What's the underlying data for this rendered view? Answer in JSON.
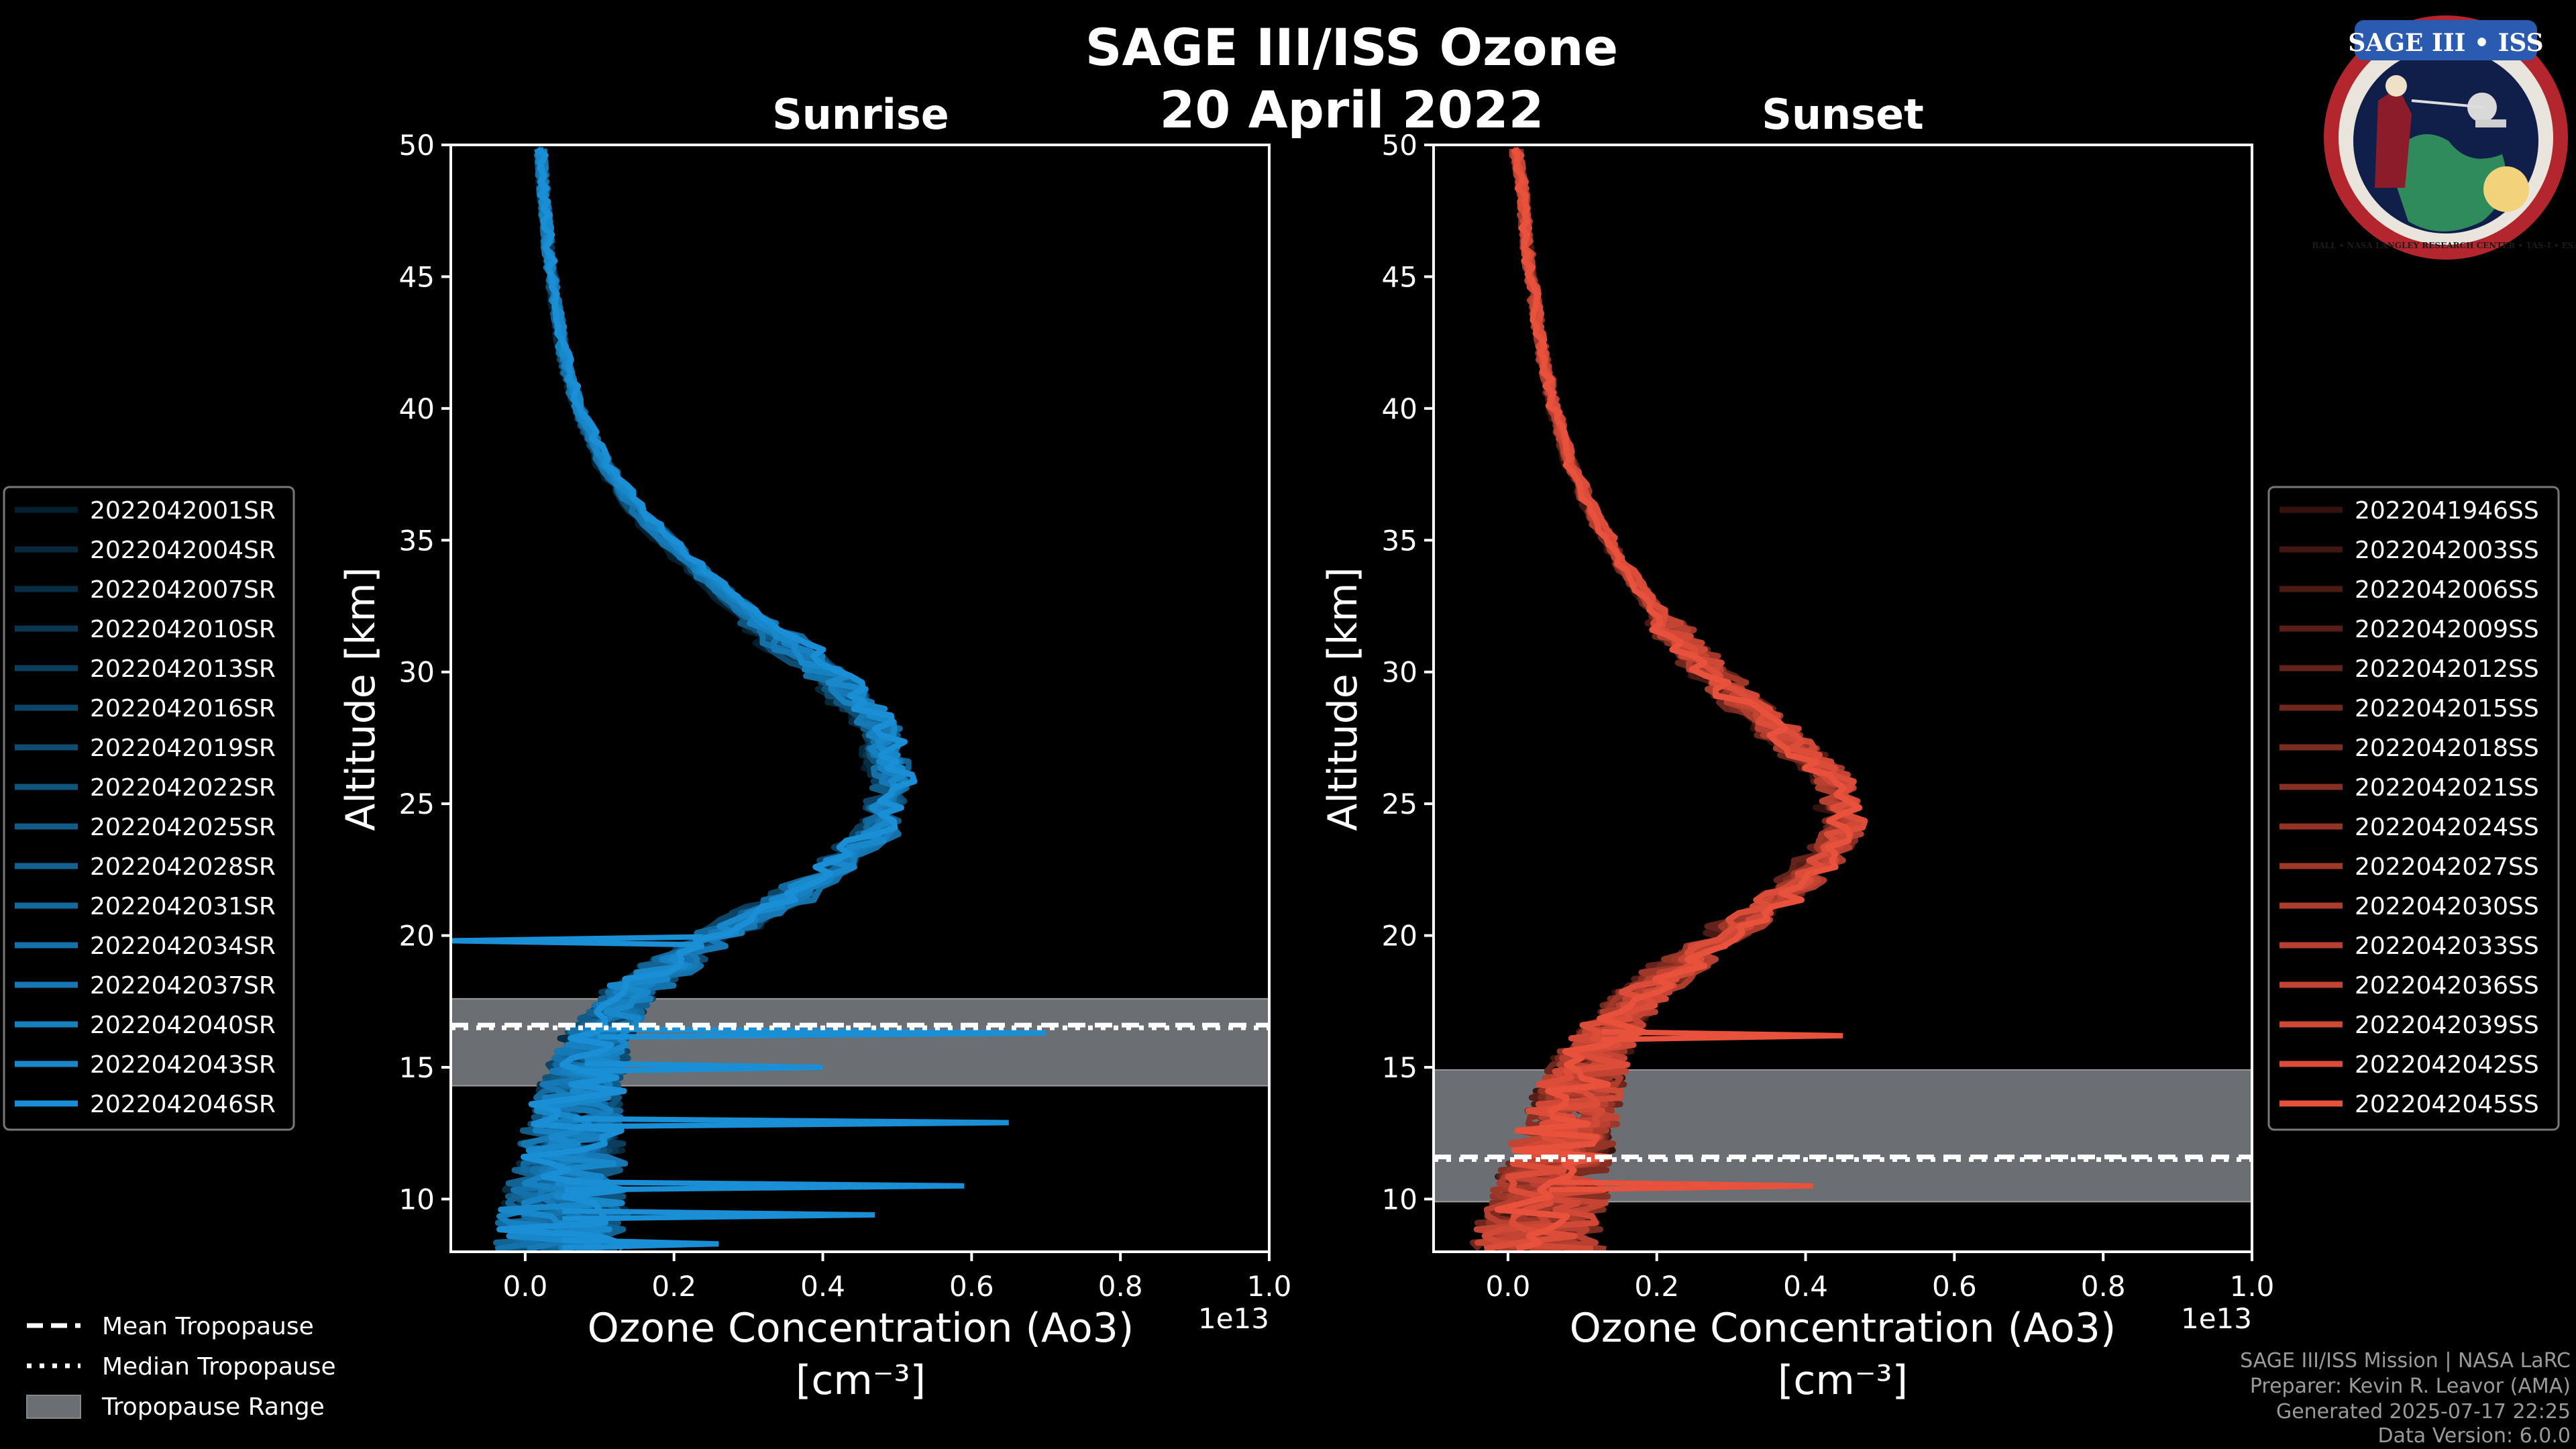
{
  "title": "SAGE III/ISS Ozone",
  "date": "20 April 2022",
  "colors": {
    "sunrise": "#1a8fd6",
    "sunset": "#e8513c",
    "tropopause_range": "#6b6e72"
  },
  "chart_data": [
    {
      "type": "line",
      "name": "sunrise",
      "subtitle": "Sunrise",
      "xlabel": "Ozone Concentration (Ao3)",
      "xunit": "[cm⁻³]",
      "ylabel": "Altitude [km]",
      "xlim": [
        -0.1,
        1.0
      ],
      "ylim": [
        8,
        50
      ],
      "x_offset_label": "1e13",
      "xticks": [
        0.0,
        0.2,
        0.4,
        0.6,
        0.8,
        1.0
      ],
      "xtick_labels": [
        "0.0",
        "0.2",
        "0.4",
        "0.6",
        "0.8",
        "1.0"
      ],
      "yticks": [
        10,
        15,
        20,
        25,
        30,
        35,
        40,
        45,
        50
      ],
      "ytick_labels": [
        "10",
        "15",
        "20",
        "25",
        "30",
        "35",
        "40",
        "45",
        "50"
      ],
      "tropopause": {
        "mean": 16.6,
        "median": 16.5,
        "range": [
          14.3,
          17.6
        ]
      },
      "base_profile": {
        "altitude": [
          8,
          10,
          12,
          14,
          16,
          18,
          20,
          22,
          24,
          26,
          28,
          30,
          32,
          34,
          36,
          38,
          40,
          42,
          44,
          46,
          48,
          50
        ],
        "ozone": [
          0.05,
          0.05,
          0.06,
          0.07,
          0.09,
          0.14,
          0.25,
          0.38,
          0.46,
          0.48,
          0.46,
          0.39,
          0.3,
          0.22,
          0.15,
          0.1,
          0.07,
          0.05,
          0.04,
          0.03,
          0.025,
          0.02
        ]
      },
      "spikes": [
        {
          "altitude": 19.8,
          "ozone": -0.1
        },
        {
          "altitude": 16.3,
          "ozone": 0.7
        },
        {
          "altitude": 15.0,
          "ozone": 0.4
        },
        {
          "altitude": 12.9,
          "ozone": 0.65
        },
        {
          "altitude": 10.5,
          "ozone": 0.59
        },
        {
          "altitude": 9.4,
          "ozone": 0.47
        },
        {
          "altitude": 8.3,
          "ozone": 0.26
        }
      ],
      "series": [
        {
          "name": "2022042001SR"
        },
        {
          "name": "2022042004SR"
        },
        {
          "name": "2022042007SR"
        },
        {
          "name": "2022042010SR"
        },
        {
          "name": "2022042013SR"
        },
        {
          "name": "2022042016SR"
        },
        {
          "name": "2022042019SR"
        },
        {
          "name": "2022042022SR"
        },
        {
          "name": "2022042025SR"
        },
        {
          "name": "2022042028SR"
        },
        {
          "name": "2022042031SR"
        },
        {
          "name": "2022042034SR"
        },
        {
          "name": "2022042037SR"
        },
        {
          "name": "2022042040SR"
        },
        {
          "name": "2022042043SR"
        },
        {
          "name": "2022042046SR"
        }
      ]
    },
    {
      "type": "line",
      "name": "sunset",
      "subtitle": "Sunset",
      "xlabel": "Ozone Concentration (Ao3)",
      "xunit": "[cm⁻³]",
      "ylabel": "Altitude [km]",
      "xlim": [
        -0.1,
        1.0
      ],
      "ylim": [
        8,
        50
      ],
      "x_offset_label": "1e13",
      "xticks": [
        0.0,
        0.2,
        0.4,
        0.6,
        0.8,
        1.0
      ],
      "xtick_labels": [
        "0.0",
        "0.2",
        "0.4",
        "0.6",
        "0.8",
        "1.0"
      ],
      "yticks": [
        10,
        15,
        20,
        25,
        30,
        35,
        40,
        45,
        50
      ],
      "ytick_labels": [
        "10",
        "15",
        "20",
        "25",
        "30",
        "35",
        "40",
        "45",
        "50"
      ],
      "tropopause": {
        "mean": 11.6,
        "median": 11.5,
        "range": [
          9.9,
          14.9
        ]
      },
      "base_profile": {
        "altitude": [
          8,
          10,
          12,
          14,
          16,
          18,
          20,
          22,
          24,
          26,
          28,
          30,
          32,
          34,
          36,
          38,
          40,
          42,
          44,
          46,
          48,
          50
        ],
        "ozone": [
          0.04,
          0.05,
          0.07,
          0.09,
          0.12,
          0.18,
          0.28,
          0.38,
          0.44,
          0.42,
          0.34,
          0.26,
          0.2,
          0.15,
          0.11,
          0.08,
          0.06,
          0.045,
          0.035,
          0.025,
          0.02,
          0.01
        ]
      },
      "spikes": [
        {
          "altitude": 10.5,
          "ozone": 0.41
        },
        {
          "altitude": 16.2,
          "ozone": 0.45
        }
      ],
      "series": [
        {
          "name": "2022041946SS"
        },
        {
          "name": "2022042003SS"
        },
        {
          "name": "2022042006SS"
        },
        {
          "name": "2022042009SS"
        },
        {
          "name": "2022042012SS"
        },
        {
          "name": "2022042015SS"
        },
        {
          "name": "2022042018SS"
        },
        {
          "name": "2022042021SS"
        },
        {
          "name": "2022042024SS"
        },
        {
          "name": "2022042027SS"
        },
        {
          "name": "2022042030SS"
        },
        {
          "name": "2022042033SS"
        },
        {
          "name": "2022042036SS"
        },
        {
          "name": "2022042039SS"
        },
        {
          "name": "2022042042SS"
        },
        {
          "name": "2022042045SS"
        }
      ]
    }
  ],
  "tropopause_legend": [
    "Mean Tropopause",
    "Median Tropopause",
    "Tropopause Range"
  ],
  "credits": [
    "SAGE III/ISS Mission | NASA LaRC",
    "Preparer: Kevin R. Leavor (AMA)",
    "Generated 2025-07-17 22:25",
    "Data Version: 6.0.0"
  ],
  "logo": {
    "text": "SAGE III • ISS",
    "ring_text": "BALL • NASA LANGLEY RESEARCH CENTER • TAS-I • ESA"
  }
}
